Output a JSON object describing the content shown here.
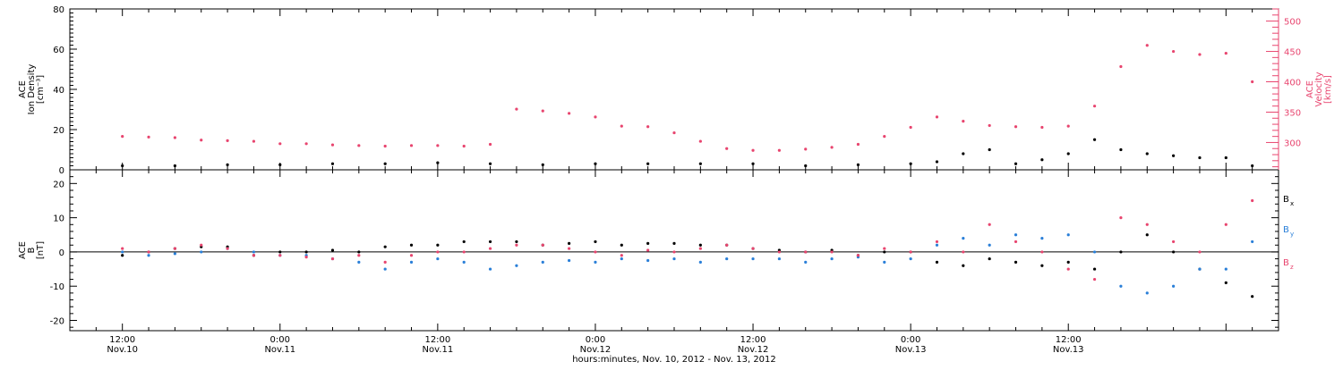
{
  "chart_data": [
    {
      "type": "scatter",
      "panel": "top",
      "left_ylabel_lines": [
        "ACE",
        "Ion Density",
        "[cm⁻³]"
      ],
      "right_ylabel_lines": [
        "ACE",
        "Velocity",
        "[km/s]"
      ],
      "left_ylim": [
        0,
        80
      ],
      "left_yticks": [
        0,
        20,
        40,
        60,
        80
      ],
      "right_ylim": [
        255,
        520
      ],
      "right_yticks": [
        300,
        350,
        400,
        450,
        500
      ],
      "x_range_hours": [
        -16,
        76
      ],
      "series": [
        {
          "axis": "left",
          "color": "#000000",
          "points": [
            [
              -12,
              2
            ],
            [
              -8,
              2
            ],
            [
              -4,
              2.5
            ],
            [
              0,
              2.5
            ],
            [
              4,
              3
            ],
            [
              8,
              3
            ],
            [
              12,
              3.5
            ],
            [
              16,
              3
            ],
            [
              20,
              2.5
            ],
            [
              24,
              3
            ],
            [
              28,
              3
            ],
            [
              32,
              3
            ],
            [
              36,
              3
            ],
            [
              40,
              2
            ],
            [
              44,
              2.5
            ],
            [
              48,
              3
            ],
            [
              50,
              4
            ],
            [
              52,
              8
            ],
            [
              54,
              10
            ],
            [
              56,
              3
            ],
            [
              58,
              5
            ],
            [
              60,
              8
            ],
            [
              62,
              15
            ],
            [
              64,
              10
            ],
            [
              66,
              8
            ],
            [
              68,
              7
            ],
            [
              70,
              6
            ],
            [
              72,
              6
            ],
            [
              74,
              2
            ]
          ]
        },
        {
          "axis": "right",
          "color": "#e8456f",
          "points": [
            [
              -12,
              310
            ],
            [
              -10,
              309
            ],
            [
              -8,
              308
            ],
            [
              -6,
              304
            ],
            [
              -4,
              303
            ],
            [
              -2,
              302
            ],
            [
              0,
              298
            ],
            [
              2,
              298
            ],
            [
              4,
              296
            ],
            [
              6,
              295
            ],
            [
              8,
              294
            ],
            [
              10,
              295
            ],
            [
              12,
              295
            ],
            [
              14,
              294
            ],
            [
              16,
              297
            ],
            [
              18,
              355
            ],
            [
              20,
              352
            ],
            [
              22,
              348
            ],
            [
              24,
              342
            ],
            [
              26,
              327
            ],
            [
              28,
              326
            ],
            [
              30,
              316
            ],
            [
              32,
              302
            ],
            [
              34,
              290
            ],
            [
              36,
              287
            ],
            [
              38,
              287
            ],
            [
              40,
              289
            ],
            [
              42,
              292
            ],
            [
              44,
              297
            ],
            [
              46,
              310
            ],
            [
              48,
              325
            ],
            [
              50,
              342
            ],
            [
              52,
              335
            ],
            [
              54,
              328
            ],
            [
              56,
              326
            ],
            [
              58,
              325
            ],
            [
              60,
              327
            ],
            [
              62,
              360
            ],
            [
              64,
              425
            ],
            [
              66,
              460
            ],
            [
              68,
              450
            ],
            [
              70,
              445
            ],
            [
              72,
              447
            ],
            [
              74,
              400
            ]
          ]
        }
      ]
    },
    {
      "type": "scatter",
      "panel": "bottom",
      "ylabel_lines": [
        "ACE",
        "B",
        "[nT]"
      ],
      "ylim": [
        -23,
        24
      ],
      "yticks": [
        -20,
        -10,
        0,
        10,
        20
      ],
      "zero_line": true,
      "x_range_hours": [
        -16,
        76
      ],
      "legend_position": "right",
      "series": [
        {
          "name": "Bx",
          "legend_lines": [
            "B",
            "x"
          ],
          "color": "#000000",
          "points": [
            [
              -12,
              -1
            ],
            [
              -10,
              0
            ],
            [
              -8,
              1
            ],
            [
              -6,
              1.5
            ],
            [
              -4,
              1.5
            ],
            [
              -2,
              -1
            ],
            [
              0,
              0
            ],
            [
              2,
              0
            ],
            [
              4,
              0.5
            ],
            [
              6,
              0
            ],
            [
              8,
              1.5
            ],
            [
              10,
              2
            ],
            [
              12,
              2
            ],
            [
              14,
              3
            ],
            [
              16,
              3
            ],
            [
              18,
              3
            ],
            [
              20,
              2
            ],
            [
              22,
              2.5
            ],
            [
              24,
              3
            ],
            [
              26,
              2
            ],
            [
              28,
              2.5
            ],
            [
              30,
              2.5
            ],
            [
              32,
              2
            ],
            [
              34,
              2
            ],
            [
              36,
              1
            ],
            [
              38,
              0.5
            ],
            [
              40,
              0
            ],
            [
              42,
              0.5
            ],
            [
              44,
              -1
            ],
            [
              46,
              0
            ],
            [
              48,
              0
            ],
            [
              50,
              -3
            ],
            [
              52,
              -4
            ],
            [
              54,
              -2
            ],
            [
              56,
              -3
            ],
            [
              58,
              -4
            ],
            [
              60,
              -3
            ],
            [
              62,
              -5
            ],
            [
              64,
              0
            ],
            [
              66,
              5
            ],
            [
              68,
              0
            ],
            [
              70,
              -5
            ],
            [
              72,
              -9
            ],
            [
              74,
              -13
            ]
          ]
        },
        {
          "name": "By",
          "legend_lines": [
            "B",
            "y"
          ],
          "color": "#2a7fd8",
          "points": [
            [
              -12,
              0
            ],
            [
              -10,
              -1
            ],
            [
              -8,
              -0.5
            ],
            [
              -6,
              0
            ],
            [
              -4,
              1
            ],
            [
              -2,
              0
            ],
            [
              0,
              -1
            ],
            [
              2,
              -1
            ],
            [
              4,
              -2
            ],
            [
              6,
              -3
            ],
            [
              8,
              -5
            ],
            [
              10,
              -3
            ],
            [
              12,
              -2
            ],
            [
              14,
              -3
            ],
            [
              16,
              -5
            ],
            [
              18,
              -4
            ],
            [
              20,
              -3
            ],
            [
              22,
              -2.5
            ],
            [
              24,
              -3
            ],
            [
              26,
              -2
            ],
            [
              28,
              -2.5
            ],
            [
              30,
              -2
            ],
            [
              32,
              -3
            ],
            [
              34,
              -2
            ],
            [
              36,
              -2
            ],
            [
              38,
              -2
            ],
            [
              40,
              -3
            ],
            [
              42,
              -2
            ],
            [
              44,
              -1.5
            ],
            [
              46,
              -3
            ],
            [
              48,
              -2
            ],
            [
              50,
              2
            ],
            [
              52,
              4
            ],
            [
              54,
              2
            ],
            [
              56,
              5
            ],
            [
              58,
              4
            ],
            [
              60,
              5
            ],
            [
              62,
              0
            ],
            [
              64,
              -10
            ],
            [
              66,
              -12
            ],
            [
              68,
              -10
            ],
            [
              70,
              -5
            ],
            [
              72,
              -5
            ],
            [
              74,
              3
            ]
          ]
        },
        {
          "name": "Bz",
          "legend_lines": [
            "B",
            "z"
          ],
          "color": "#e8456f",
          "points": [
            [
              -12,
              1
            ],
            [
              -10,
              0
            ],
            [
              -8,
              1
            ],
            [
              -6,
              2
            ],
            [
              -4,
              1
            ],
            [
              -2,
              -1
            ],
            [
              0,
              -1
            ],
            [
              2,
              -1.5
            ],
            [
              4,
              -2
            ],
            [
              6,
              -1
            ],
            [
              8,
              -3
            ],
            [
              10,
              -1
            ],
            [
              12,
              0
            ],
            [
              14,
              0
            ],
            [
              16,
              1
            ],
            [
              18,
              2
            ],
            [
              20,
              2
            ],
            [
              22,
              1
            ],
            [
              24,
              0
            ],
            [
              26,
              -1
            ],
            [
              28,
              0.5
            ],
            [
              30,
              0
            ],
            [
              32,
              1
            ],
            [
              34,
              2
            ],
            [
              36,
              1
            ],
            [
              38,
              0
            ],
            [
              40,
              0
            ],
            [
              42,
              0
            ],
            [
              44,
              -1
            ],
            [
              46,
              1
            ],
            [
              48,
              0
            ],
            [
              50,
              3
            ],
            [
              52,
              0
            ],
            [
              54,
              8
            ],
            [
              56,
              3
            ],
            [
              58,
              0
            ],
            [
              60,
              -5
            ],
            [
              62,
              -8
            ],
            [
              64,
              10
            ],
            [
              66,
              8
            ],
            [
              68,
              3
            ],
            [
              70,
              0
            ],
            [
              72,
              8
            ],
            [
              74,
              15
            ]
          ]
        }
      ]
    }
  ],
  "x_axis": {
    "ticks": [
      {
        "hour": -12,
        "time": "12:00",
        "date": "Nov.10"
      },
      {
        "hour": 0,
        "time": "0:00",
        "date": "Nov.11"
      },
      {
        "hour": 12,
        "time": "12:00",
        "date": "Nov.11"
      },
      {
        "hour": 24,
        "time": "0:00",
        "date": "Nov.12"
      },
      {
        "hour": 36,
        "time": "12:00",
        "date": "Nov.12"
      },
      {
        "hour": 48,
        "time": "0:00",
        "date": "Nov.13"
      },
      {
        "hour": 60,
        "time": "12:00",
        "date": "Nov.13"
      }
    ],
    "label": "hours:minutes, Nov. 10, 2012 - Nov. 13, 2012"
  }
}
